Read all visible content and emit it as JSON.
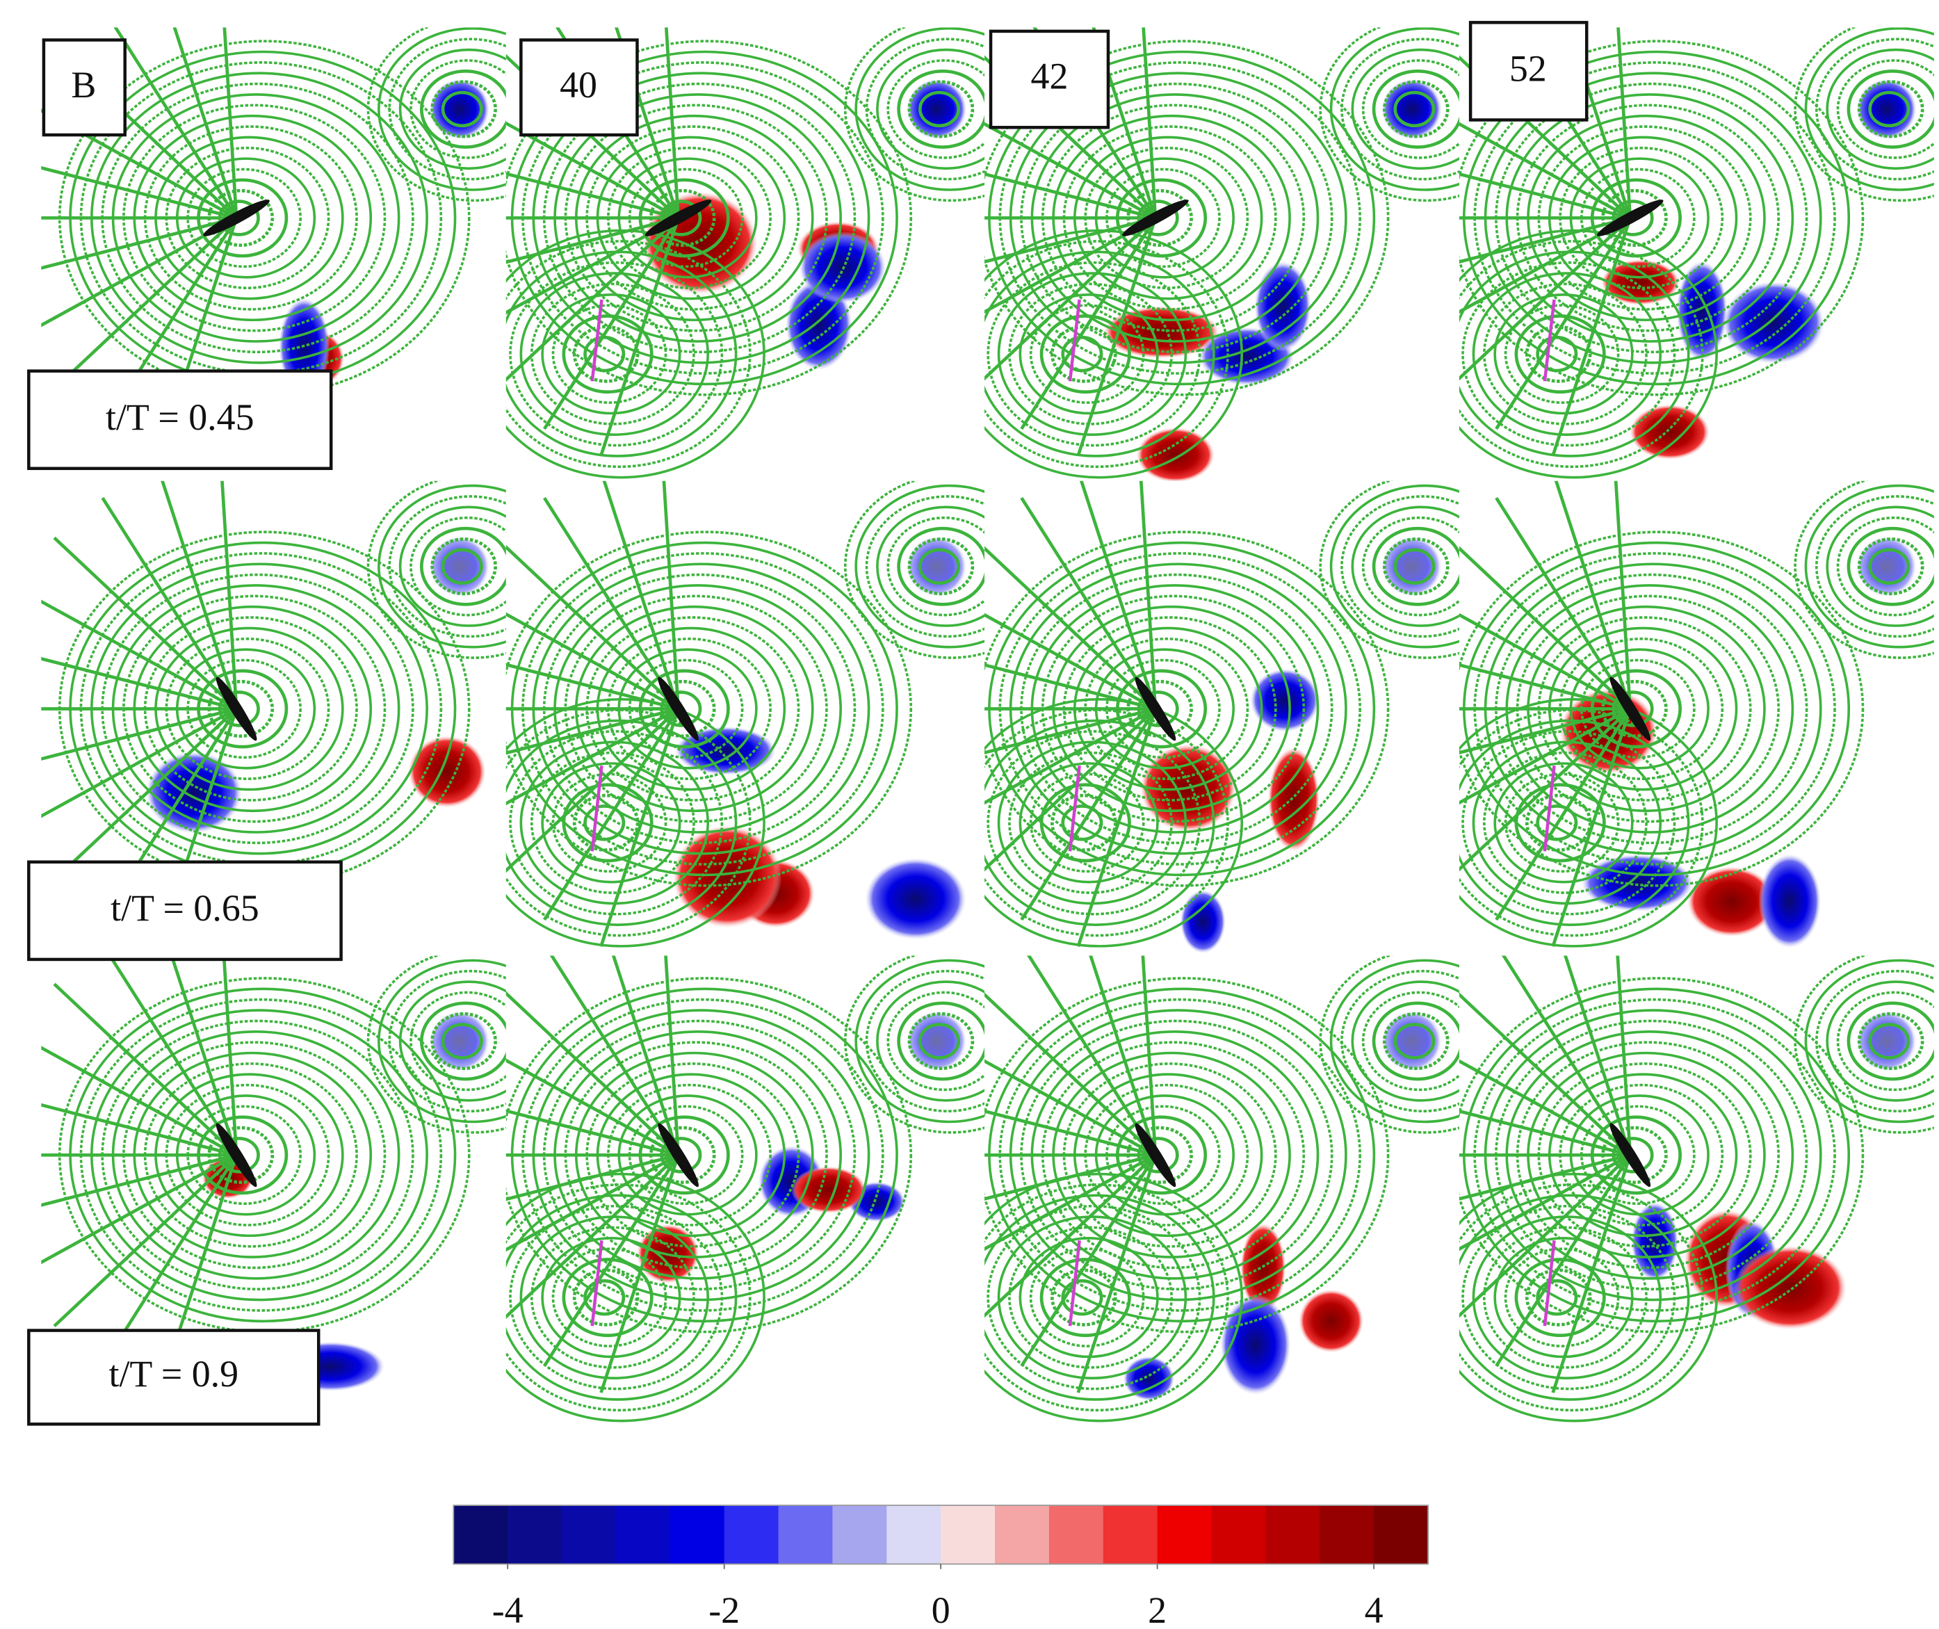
{
  "panels": {
    "column_labels": [
      "B",
      "40",
      "42",
      "52"
    ],
    "row_labels": [
      "t/T = 0.45",
      "t/T = 0.65",
      "t/T = 0.9"
    ]
  },
  "colorbar": {
    "lim": [
      -4.5,
      4.5
    ],
    "ticks": [
      -4,
      -2,
      0,
      2,
      4
    ],
    "colors": [
      "#0a0a6e",
      "#0b0b8c",
      "#0a0aa8",
      "#0606c4",
      "#0000e4",
      "#2c2cf2",
      "#6a6af2",
      "#a6a6ee",
      "#dadaf6",
      "#f8dcdc",
      "#f4a6a6",
      "#f26a6a",
      "#f03232",
      "#ee0000",
      "#d00000",
      "#b40000",
      "#960000",
      "#7a0000"
    ]
  }
}
